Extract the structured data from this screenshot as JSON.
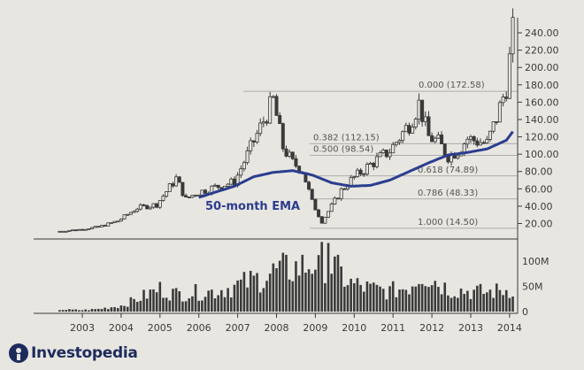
{
  "brand": {
    "logo_text": "Investopedia"
  },
  "colors": {
    "background": "#e8e6e1",
    "candle": "#3a3a3a",
    "ema": "#2b3d8f",
    "volume": "#3a3a3a",
    "fib_line": "#9a9a9a"
  },
  "chart_data": {
    "type": "candlestick",
    "x_tick_labels": [
      "2003",
      "2004",
      "2005",
      "2006",
      "2007",
      "2008",
      "2009",
      "2010",
      "2011",
      "2012",
      "2013",
      "2014"
    ],
    "price_axis": {
      "tick_labels": [
        "20.00",
        "40.00",
        "60.00",
        "80.00",
        "100.00",
        "120.00",
        "140.00",
        "160.00",
        "180.00",
        "200.00",
        "220.00",
        "240.00"
      ],
      "ylim": [
        10,
        250
      ]
    },
    "volume_axis": {
      "tick_labels": [
        "0",
        "50M",
        "100M"
      ],
      "ylim": [
        0,
        140
      ]
    },
    "ema_label": "50-month EMA",
    "fib_levels": [
      {
        "label": "0.000 (172.58)",
        "value": 172.58
      },
      {
        "label": "0.382 (112.15)",
        "value": 112.15
      },
      {
        "label": "0.500 (98.54)",
        "value": 98.54
      },
      {
        "label": "0.618 (74.89)",
        "value": 74.89
      },
      {
        "label": "0.786 (48.33)",
        "value": 48.33
      },
      {
        "label": "1.000 (14.50)",
        "value": 14.5
      }
    ],
    "close_anchors": [
      [
        "2002-06",
        11
      ],
      [
        "2002-12",
        13
      ],
      [
        "2003-06",
        16
      ],
      [
        "2003-12",
        23
      ],
      [
        "2004-06",
        38
      ],
      [
        "2004-12",
        42
      ],
      [
        "2005-06",
        72
      ],
      [
        "2005-09",
        48
      ],
      [
        "2005-12",
        55
      ],
      [
        "2006-06",
        62
      ],
      [
        "2006-12",
        68
      ],
      [
        "2007-06",
        115
      ],
      [
        "2007-12",
        162
      ],
      [
        "2008-03",
        108
      ],
      [
        "2008-06",
        90
      ],
      [
        "2008-09",
        82
      ],
      [
        "2008-12",
        45
      ],
      [
        "2009-03",
        22
      ],
      [
        "2009-06",
        40
      ],
      [
        "2009-09",
        58
      ],
      [
        "2009-12",
        70
      ],
      [
        "2010-06",
        88
      ],
      [
        "2010-12",
        104
      ],
      [
        "2011-06",
        135
      ],
      [
        "2011-09",
        158
      ],
      [
        "2011-12",
        120
      ],
      [
        "2012-03",
        114
      ],
      [
        "2012-06",
        98
      ],
      [
        "2012-09",
        104
      ],
      [
        "2012-12",
        118
      ],
      [
        "2013-06",
        112
      ],
      [
        "2013-09",
        142
      ],
      [
        "2013-12",
        178
      ],
      [
        "2014-02",
        240
      ]
    ],
    "ema_anchors": [
      [
        "2006-01",
        50
      ],
      [
        "2006-06",
        56
      ],
      [
        "2006-12",
        63
      ],
      [
        "2007-06",
        74
      ],
      [
        "2007-12",
        79
      ],
      [
        "2008-06",
        81
      ],
      [
        "2008-12",
        76
      ],
      [
        "2009-06",
        67
      ],
      [
        "2009-12",
        63
      ],
      [
        "2010-06",
        64
      ],
      [
        "2010-12",
        70
      ],
      [
        "2011-06",
        80
      ],
      [
        "2011-12",
        90
      ],
      [
        "2012-06",
        99
      ],
      [
        "2012-12",
        102
      ],
      [
        "2013-06",
        106
      ],
      [
        "2013-12",
        116
      ],
      [
        "2014-02",
        126
      ]
    ],
    "volume_anchors": [
      [
        "2002-06",
        4
      ],
      [
        "2003-01",
        3
      ],
      [
        "2003-06",
        5
      ],
      [
        "2004-01",
        12
      ],
      [
        "2004-06",
        25
      ],
      [
        "2005-01",
        45
      ],
      [
        "2005-06",
        35
      ],
      [
        "2006-01",
        38
      ],
      [
        "2006-06",
        40
      ],
      [
        "2007-01",
        52
      ],
      [
        "2007-06",
        62
      ],
      [
        "2008-01",
        80
      ],
      [
        "2008-06",
        85
      ],
      [
        "2008-10",
        90
      ],
      [
        "2009-01",
        100
      ],
      [
        "2009-03",
        108
      ],
      [
        "2009-06",
        90
      ],
      [
        "2009-12",
        55
      ],
      [
        "2010-06",
        45
      ],
      [
        "2010-12",
        40
      ],
      [
        "2011-06",
        50
      ],
      [
        "2011-10",
        78
      ],
      [
        "2012-06",
        45
      ],
      [
        "2013-01",
        40
      ],
      [
        "2013-06",
        38
      ],
      [
        "2014-02",
        45
      ]
    ]
  }
}
